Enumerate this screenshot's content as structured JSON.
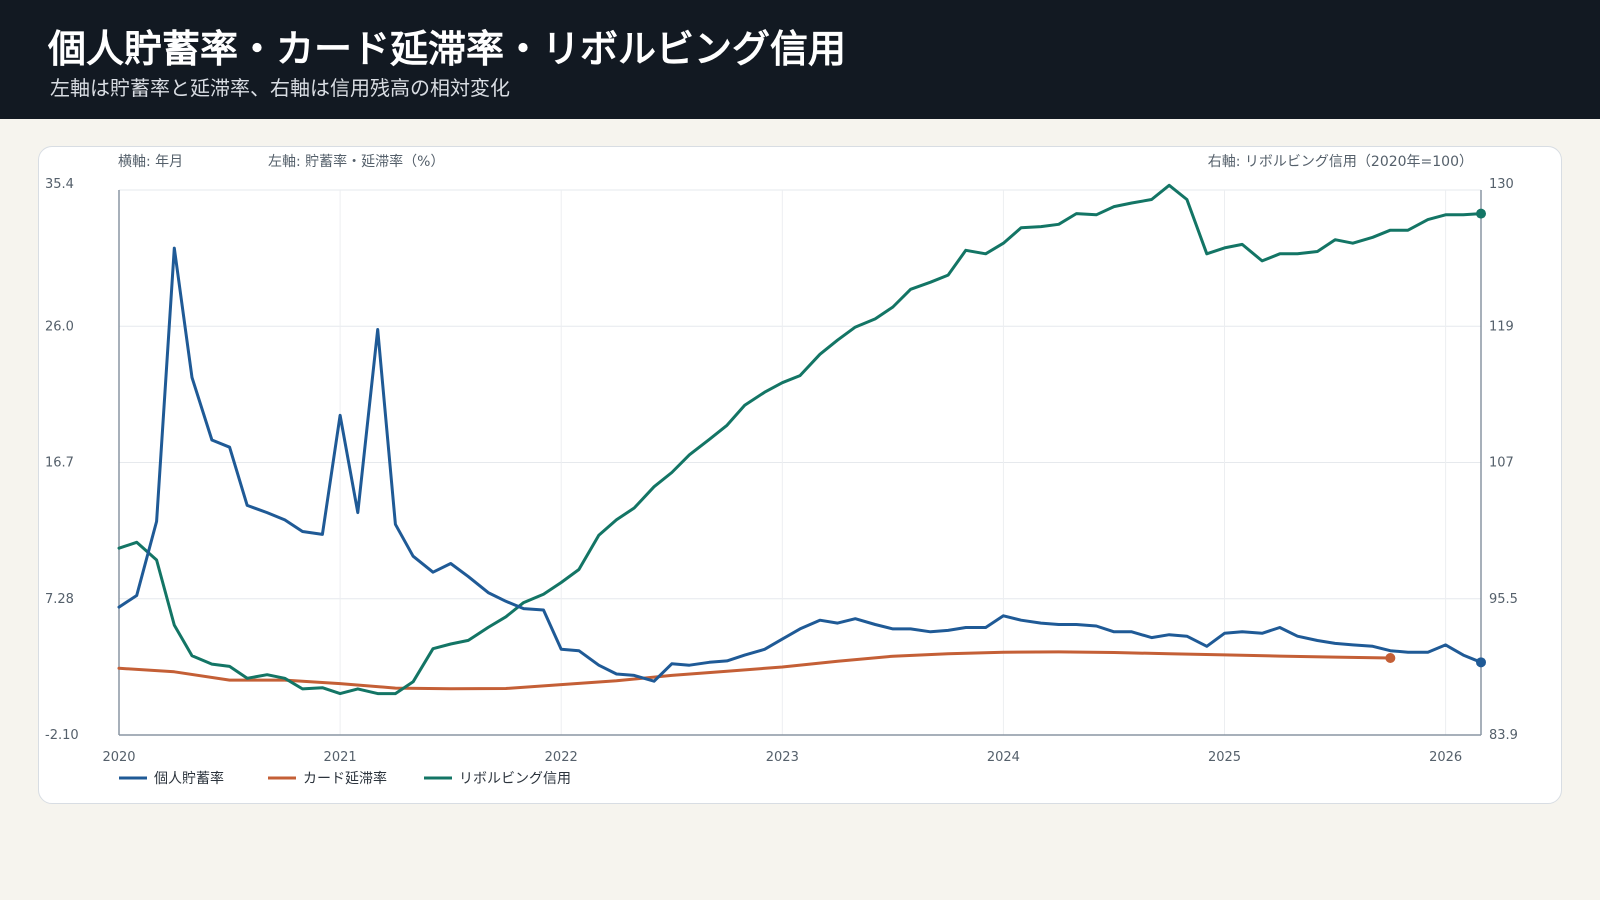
{
  "header": {
    "title": "個人貯蓄率・カード延滞率・リボルビング信用",
    "subtitle": "左軸は貯蓄率と延滞率、右軸は信用残高の相対変化"
  },
  "chart_data": {
    "type": "line",
    "axis_titles": {
      "x": "横軸: 年月",
      "left": "左軸: 貯蓄率・延滞率（%）",
      "right": "右軸: リボルビング信用（2020年=100）"
    },
    "x_range": [
      2020.0,
      2026.16
    ],
    "x_ticks": [
      "2020",
      "2021",
      "2022",
      "2023",
      "2024",
      "2025",
      "2026"
    ],
    "left_axis": {
      "range": [
        -2.1,
        35.4
      ],
      "ticks": [
        "35.4",
        "26.0",
        "16.7",
        "7.28",
        "-2.10"
      ]
    },
    "right_axis": {
      "range": [
        83.9,
        130
      ],
      "ticks": [
        "130",
        "119",
        "107",
        "95.5",
        "83.9"
      ]
    },
    "grid": true,
    "legend_position": "bottom-left",
    "series": [
      {
        "name": "個人貯蓄率",
        "axis": "left",
        "color": "#1f5a96",
        "x": [
          2020.0,
          2020.08,
          2020.17,
          2020.25,
          2020.33,
          2020.42,
          2020.5,
          2020.58,
          2020.67,
          2020.75,
          2020.83,
          2020.92,
          2021.0,
          2021.08,
          2021.17,
          2021.25,
          2021.33,
          2021.42,
          2021.5,
          2021.58,
          2021.67,
          2021.75,
          2021.83,
          2021.92,
          2022.0,
          2022.08,
          2022.17,
          2022.25,
          2022.33,
          2022.42,
          2022.5,
          2022.58,
          2022.67,
          2022.75,
          2022.83,
          2022.92,
          2023.0,
          2023.08,
          2023.17,
          2023.25,
          2023.33,
          2023.42,
          2023.5,
          2023.58,
          2023.67,
          2023.75,
          2023.83,
          2023.92,
          2024.0,
          2024.08,
          2024.17,
          2024.25,
          2024.33,
          2024.42,
          2024.5,
          2024.58,
          2024.67,
          2024.75,
          2024.83,
          2024.92,
          2025.0,
          2025.08,
          2025.17,
          2025.25,
          2025.33,
          2025.42,
          2025.5,
          2025.58,
          2025.67,
          2025.75,
          2025.83,
          2025.92,
          2026.0,
          2026.08,
          2026.16
        ],
        "y": [
          6.7,
          7.5,
          12.6,
          31.4,
          22.5,
          18.2,
          17.7,
          13.7,
          13.2,
          12.7,
          11.9,
          11.7,
          19.9,
          13.2,
          25.8,
          12.4,
          10.2,
          9.1,
          9.7,
          8.8,
          7.7,
          7.1,
          6.6,
          6.5,
          3.8,
          3.7,
          2.7,
          2.1,
          2.0,
          1.6,
          2.8,
          2.7,
          2.9,
          3.0,
          3.4,
          3.8,
          4.5,
          5.2,
          5.8,
          5.6,
          5.9,
          5.5,
          5.2,
          5.2,
          5.0,
          5.1,
          5.3,
          5.3,
          6.1,
          5.8,
          5.6,
          5.5,
          5.5,
          5.4,
          5.0,
          5.0,
          4.6,
          4.8,
          4.7,
          4.0,
          4.9,
          5.0,
          4.9,
          5.3,
          4.7,
          4.4,
          4.2,
          4.1,
          4.0,
          3.7,
          3.6,
          3.6,
          4.1,
          3.4,
          2.9
        ]
      },
      {
        "name": "カード延滞率",
        "axis": "left",
        "color": "#c45f36",
        "x": [
          2020.0,
          2020.25,
          2020.5,
          2020.75,
          2021.0,
          2021.25,
          2021.5,
          2021.75,
          2022.0,
          2022.25,
          2022.5,
          2022.75,
          2023.0,
          2023.25,
          2023.5,
          2023.75,
          2024.0,
          2024.25,
          2024.5,
          2024.75,
          2025.0,
          2025.25,
          2025.5,
          2025.75
        ],
        "y": [
          2.49,
          2.25,
          1.68,
          1.68,
          1.44,
          1.13,
          1.08,
          1.1,
          1.37,
          1.63,
          2.0,
          2.29,
          2.58,
          2.98,
          3.32,
          3.49,
          3.6,
          3.62,
          3.58,
          3.49,
          3.41,
          3.33,
          3.26,
          3.2
        ]
      },
      {
        "name": "リボルビング信用",
        "axis": "right",
        "color": "#137565",
        "x": [
          2020.0,
          2020.08,
          2020.17,
          2020.25,
          2020.33,
          2020.42,
          2020.5,
          2020.58,
          2020.67,
          2020.75,
          2020.83,
          2020.92,
          2021.0,
          2021.08,
          2021.17,
          2021.25,
          2021.33,
          2021.42,
          2021.5,
          2021.58,
          2021.67,
          2021.75,
          2021.83,
          2021.92,
          2022.0,
          2022.08,
          2022.17,
          2022.25,
          2022.33,
          2022.42,
          2022.5,
          2022.58,
          2022.67,
          2022.75,
          2022.83,
          2022.92,
          2023.0,
          2023.08,
          2023.17,
          2023.25,
          2023.33,
          2023.42,
          2023.5,
          2023.58,
          2023.67,
          2023.75,
          2023.83,
          2023.92,
          2024.0,
          2024.08,
          2024.17,
          2024.25,
          2024.33,
          2024.42,
          2024.5,
          2024.58,
          2024.67,
          2024.75,
          2024.83,
          2024.92,
          2025.0,
          2025.08,
          2025.17,
          2025.25,
          2025.33,
          2025.42,
          2025.5,
          2025.58,
          2025.67,
          2025.75,
          2025.83,
          2025.92,
          2026.0,
          2026.08,
          2026.16
        ],
        "y": [
          99.7,
          100.2,
          98.7,
          93.2,
          90.6,
          89.9,
          89.7,
          88.7,
          89.0,
          88.7,
          87.8,
          87.9,
          87.4,
          87.8,
          87.4,
          87.4,
          88.4,
          91.2,
          91.6,
          91.9,
          93.0,
          93.9,
          95.1,
          95.8,
          96.8,
          97.9,
          100.8,
          102.1,
          103.1,
          104.9,
          106.1,
          107.6,
          108.9,
          110.1,
          111.8,
          112.9,
          113.7,
          114.3,
          116.1,
          117.3,
          118.4,
          119.1,
          120.1,
          121.6,
          122.2,
          122.8,
          124.9,
          124.6,
          125.5,
          126.8,
          126.9,
          127.1,
          128.0,
          127.9,
          128.6,
          128.9,
          129.2,
          130.4,
          129.2,
          124.6,
          125.1,
          125.4,
          124.0,
          124.6,
          124.6,
          124.8,
          125.8,
          125.5,
          126.0,
          126.6,
          126.6,
          127.5,
          127.9,
          127.9,
          128.0
        ]
      }
    ]
  }
}
